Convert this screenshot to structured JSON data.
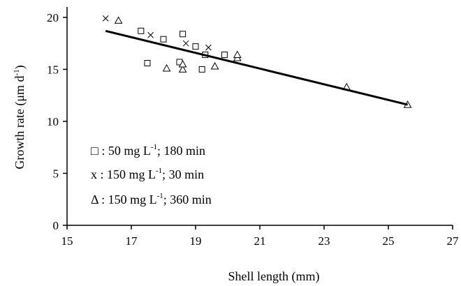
{
  "chart_data": {
    "type": "scatter",
    "title": "",
    "xlabel": "Shell length (mm)",
    "ylabel": "Growth rate (μm d",
    "ylabel_sup": "-1",
    "ylabel_close": ")",
    "xlim": [
      15,
      27
    ],
    "ylim": [
      0,
      21
    ],
    "xticks": [
      15,
      17,
      19,
      21,
      23,
      25,
      27
    ],
    "yticks": [
      0,
      5,
      10,
      15,
      20
    ],
    "grid": false,
    "legend_placement": "bottom-left",
    "series": [
      {
        "marker": "square",
        "legend_symbol": "□",
        "legend_main": " : 50 mg L",
        "legend_sup": "-1",
        "legend_tail": "; 180 min",
        "x": [
          17.3,
          17.5,
          18.0,
          18.5,
          18.6,
          19.0,
          19.2,
          19.3,
          19.9
        ],
        "y": [
          18.7,
          15.6,
          17.9,
          15.7,
          18.4,
          17.2,
          15.0,
          16.4,
          16.4
        ]
      },
      {
        "marker": "x",
        "legend_symbol": "x",
        "legend_main": " : 150 mg L",
        "legend_sup": "-1",
        "legend_tail": "; 30 min",
        "x": [
          16.2,
          17.6,
          18.7,
          19.4
        ],
        "y": [
          19.9,
          18.3,
          17.5,
          17.1
        ]
      },
      {
        "marker": "triangle",
        "legend_symbol": "Δ",
        "legend_main": " : 150 mg L",
        "legend_sup": "-1",
        "legend_tail": "; 360 min",
        "x": [
          16.6,
          18.1,
          18.6,
          18.6,
          19.6,
          20.3,
          20.3,
          23.7,
          25.6
        ],
        "y": [
          19.7,
          15.1,
          15.0,
          15.5,
          15.3,
          16.1,
          16.4,
          13.3,
          11.6
        ]
      }
    ],
    "trendline": {
      "x": [
        16.2,
        25.6
      ],
      "y": [
        18.7,
        11.6
      ]
    }
  }
}
